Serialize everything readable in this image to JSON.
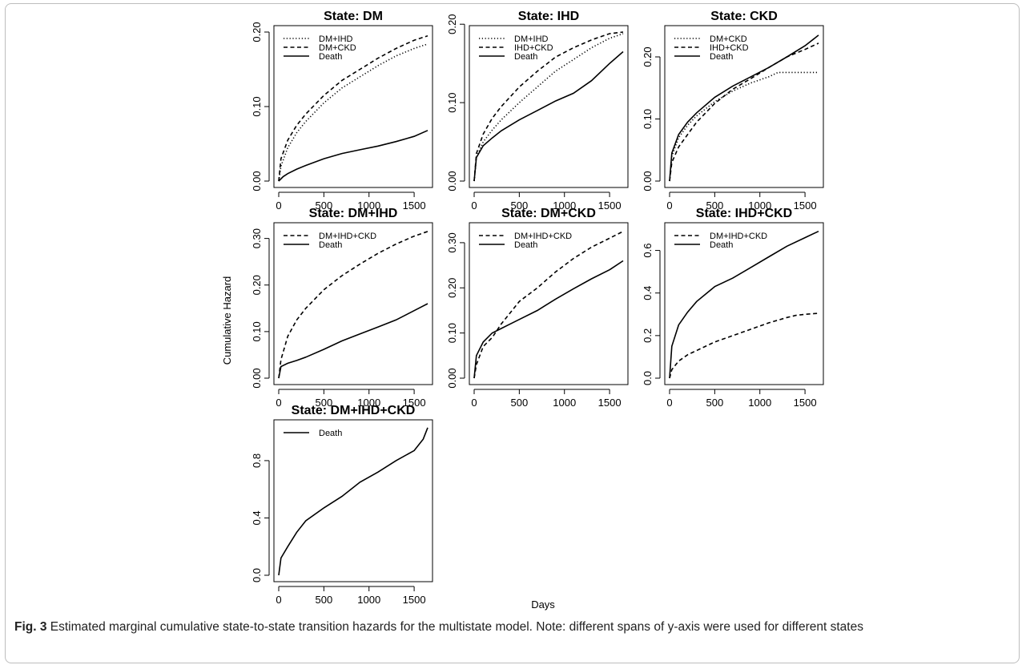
{
  "caption": {
    "label": "Fig. 3",
    "text": " Estimated marginal cumulative state-to-state transition hazards for the multistate model. Note: different spans of y-axis were used for different states"
  },
  "chart_data": {
    "type": "line",
    "xlabel": "Days",
    "ylabel": "Cumulative Hazard",
    "panels": [
      {
        "title": "State: DM",
        "xlim": [
          0,
          1650
        ],
        "xticks": [
          0,
          500,
          1000,
          1500
        ],
        "ylim": [
          0,
          0.2
        ],
        "yticks": [
          0.0,
          0.1,
          0.2
        ],
        "ytick_labels": [
          "0.00",
          "0.10",
          "0.20"
        ],
        "series": [
          {
            "name": "DM+IHD",
            "style": "dotted",
            "x": [
              0,
              25,
              100,
              200,
              300,
              500,
              700,
              900,
              1100,
              1300,
              1500,
              1650
            ],
            "y": [
              0,
              0.02,
              0.045,
              0.065,
              0.08,
              0.105,
              0.125,
              0.14,
              0.155,
              0.168,
              0.178,
              0.184
            ]
          },
          {
            "name": "DM+CKD",
            "style": "dashed",
            "x": [
              0,
              25,
              100,
              200,
              300,
              500,
              700,
              900,
              1100,
              1300,
              1500,
              1650
            ],
            "y": [
              0,
              0.03,
              0.055,
              0.075,
              0.09,
              0.115,
              0.135,
              0.15,
              0.165,
              0.178,
              0.189,
              0.195
            ]
          },
          {
            "name": "Death",
            "style": "solid",
            "x": [
              0,
              50,
              100,
              200,
              300,
              500,
              700,
              900,
              1100,
              1300,
              1500,
              1650
            ],
            "y": [
              0,
              0.006,
              0.01,
              0.016,
              0.021,
              0.03,
              0.037,
              0.042,
              0.047,
              0.053,
              0.06,
              0.068
            ]
          }
        ]
      },
      {
        "title": "State: IHD",
        "xlim": [
          0,
          1650
        ],
        "xticks": [
          0,
          500,
          1000,
          1500
        ],
        "ylim": [
          0,
          0.19
        ],
        "yticks": [
          0.0,
          0.1,
          0.2
        ],
        "ytick_labels": [
          "0.00",
          "0.10",
          "0.20"
        ],
        "series": [
          {
            "name": "DM+IHD",
            "style": "dotted",
            "x": [
              0,
              25,
              100,
              200,
              300,
              500,
              700,
              900,
              1100,
              1300,
              1500,
              1650
            ],
            "y": [
              0,
              0.03,
              0.05,
              0.065,
              0.078,
              0.1,
              0.12,
              0.14,
              0.155,
              0.17,
              0.182,
              0.188
            ]
          },
          {
            "name": "IHD+CKD",
            "style": "dashed",
            "x": [
              0,
              25,
              100,
              200,
              300,
              500,
              700,
              900,
              1100,
              1300,
              1500,
              1650
            ],
            "y": [
              0,
              0.035,
              0.06,
              0.08,
              0.095,
              0.12,
              0.14,
              0.158,
              0.17,
              0.18,
              0.188,
              0.19
            ]
          },
          {
            "name": "Death",
            "style": "solid",
            "x": [
              0,
              25,
              100,
              200,
              300,
              500,
              700,
              900,
              1100,
              1300,
              1500,
              1650
            ],
            "y": [
              0,
              0.03,
              0.045,
              0.055,
              0.064,
              0.078,
              0.09,
              0.102,
              0.112,
              0.128,
              0.15,
              0.165
            ]
          }
        ]
      },
      {
        "title": "State: CKD",
        "xlim": [
          0,
          1650
        ],
        "xticks": [
          0,
          500,
          1000,
          1500
        ],
        "ylim": [
          0,
          0.24
        ],
        "yticks": [
          0.0,
          0.1,
          0.2
        ],
        "ytick_labels": [
          "0.00",
          "0.10",
          "0.20"
        ],
        "series": [
          {
            "name": "DM+CKD",
            "style": "dotted",
            "x": [
              0,
              25,
              100,
              200,
              300,
              500,
              700,
              900,
              1100,
              1200,
              1300,
              1500,
              1650
            ],
            "y": [
              0,
              0.04,
              0.07,
              0.09,
              0.105,
              0.128,
              0.145,
              0.158,
              0.168,
              0.175,
              0.175,
              0.175,
              0.175
            ]
          },
          {
            "name": "IHD+CKD",
            "style": "dashed",
            "x": [
              0,
              25,
              100,
              200,
              300,
              500,
              700,
              900,
              1100,
              1300,
              1500,
              1650
            ],
            "y": [
              0,
              0.03,
              0.055,
              0.075,
              0.095,
              0.125,
              0.148,
              0.165,
              0.183,
              0.2,
              0.212,
              0.222
            ]
          },
          {
            "name": "Death",
            "style": "solid",
            "x": [
              0,
              25,
              100,
              200,
              300,
              500,
              700,
              900,
              1100,
              1300,
              1500,
              1650
            ],
            "y": [
              0,
              0.045,
              0.075,
              0.095,
              0.11,
              0.135,
              0.153,
              0.168,
              0.183,
              0.2,
              0.218,
              0.235
            ]
          }
        ]
      },
      {
        "title": "State: DM+IHD",
        "xlim": [
          0,
          1650
        ],
        "xticks": [
          0,
          500,
          1000,
          1500
        ],
        "ylim": [
          0,
          0.32
        ],
        "yticks": [
          0.0,
          0.1,
          0.2,
          0.3
        ],
        "ytick_labels": [
          "0.00",
          "0.10",
          "0.20",
          "0.30"
        ],
        "series": [
          {
            "name": "DM+IHD+CKD",
            "style": "dashed",
            "x": [
              0,
              25,
              100,
              200,
              300,
              500,
              700,
              900,
              1100,
              1300,
              1500,
              1650
            ],
            "y": [
              0,
              0.04,
              0.09,
              0.125,
              0.15,
              0.19,
              0.22,
              0.245,
              0.268,
              0.288,
              0.305,
              0.315
            ]
          },
          {
            "name": "Death",
            "style": "solid",
            "x": [
              0,
              25,
              100,
              200,
              300,
              500,
              700,
              900,
              1100,
              1300,
              1500,
              1650
            ],
            "y": [
              0,
              0.025,
              0.032,
              0.038,
              0.045,
              0.062,
              0.08,
              0.095,
              0.11,
              0.125,
              0.145,
              0.16
            ]
          }
        ]
      },
      {
        "title": "State: DM+CKD",
        "xlim": [
          0,
          1650
        ],
        "xticks": [
          0,
          500,
          1000,
          1500
        ],
        "ylim": [
          0,
          0.33
        ],
        "yticks": [
          0.0,
          0.1,
          0.2,
          0.3
        ],
        "ytick_labels": [
          "0.00",
          "0.10",
          "0.20",
          "0.30"
        ],
        "series": [
          {
            "name": "DM+IHD+CKD",
            "style": "dashed",
            "x": [
              0,
              25,
              100,
              200,
              300,
              500,
              700,
              900,
              1100,
              1300,
              1500,
              1650
            ],
            "y": [
              0,
              0.03,
              0.07,
              0.09,
              0.12,
              0.17,
              0.2,
              0.235,
              0.265,
              0.29,
              0.31,
              0.325
            ]
          },
          {
            "name": "Death",
            "style": "solid",
            "x": [
              0,
              25,
              100,
              200,
              300,
              500,
              700,
              900,
              1100,
              1300,
              1500,
              1650
            ],
            "y": [
              0,
              0.05,
              0.08,
              0.1,
              0.11,
              0.13,
              0.15,
              0.175,
              0.198,
              0.22,
              0.24,
              0.26
            ]
          }
        ]
      },
      {
        "title": "State: IHD+CKD",
        "xlim": [
          0,
          1650
        ],
        "xticks": [
          0,
          500,
          1000,
          1500
        ],
        "ylim": [
          0,
          0.7
        ],
        "yticks": [
          0.0,
          0.2,
          0.4,
          0.6
        ],
        "ytick_labels": [
          "0.0",
          "0.2",
          "0.4",
          "0.6"
        ],
        "series": [
          {
            "name": "DM+IHD+CKD",
            "style": "dashed",
            "x": [
              0,
              25,
              100,
              200,
              300,
              500,
              700,
              900,
              1100,
              1300,
              1400,
              1500,
              1650
            ],
            "y": [
              0,
              0.04,
              0.08,
              0.11,
              0.13,
              0.17,
              0.2,
              0.23,
              0.26,
              0.285,
              0.295,
              0.3,
              0.305
            ]
          },
          {
            "name": "Death",
            "style": "solid",
            "x": [
              0,
              25,
              100,
              200,
              300,
              500,
              700,
              900,
              1100,
              1300,
              1500,
              1650
            ],
            "y": [
              0,
              0.15,
              0.25,
              0.31,
              0.36,
              0.43,
              0.47,
              0.52,
              0.57,
              0.62,
              0.66,
              0.69
            ]
          }
        ]
      },
      {
        "title": "State: DM+IHD+CKD",
        "xlim": [
          0,
          1650
        ],
        "xticks": [
          0,
          500,
          1000,
          1500
        ],
        "ylim": [
          0,
          1.04
        ],
        "yticks": [
          0.0,
          0.4,
          0.8
        ],
        "ytick_labels": [
          "0.0",
          "0.4",
          "0.8"
        ],
        "series": [
          {
            "name": "Death",
            "style": "solid",
            "x": [
              0,
              25,
              100,
              200,
              300,
              500,
              700,
              900,
              1100,
              1300,
              1500,
              1600,
              1650
            ],
            "y": [
              0,
              0.12,
              0.2,
              0.3,
              0.38,
              0.47,
              0.55,
              0.65,
              0.72,
              0.8,
              0.87,
              0.95,
              1.03
            ]
          }
        ]
      }
    ]
  }
}
